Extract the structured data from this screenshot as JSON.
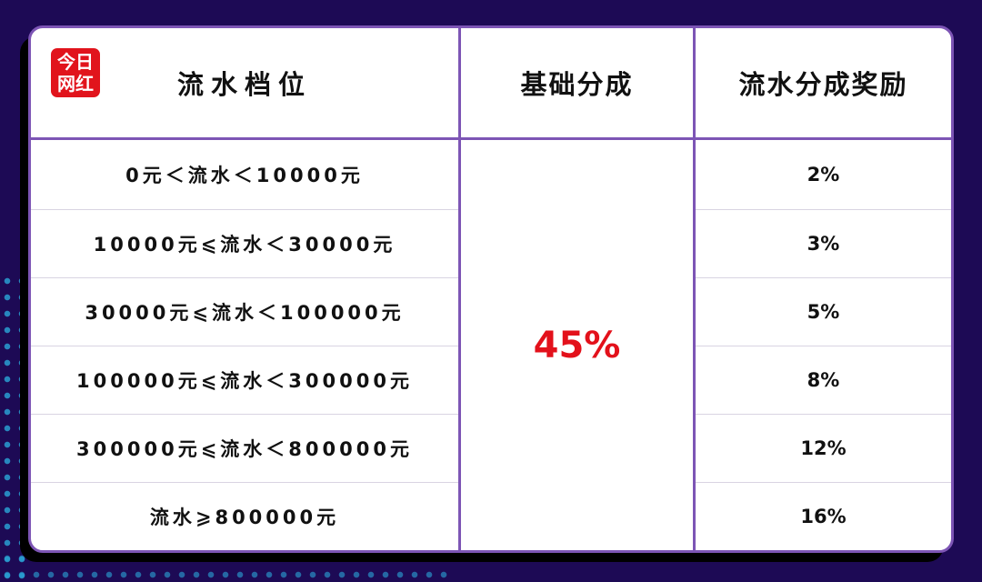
{
  "logo": {
    "line1": "今日",
    "line2": "网红"
  },
  "headers": [
    "流水档位",
    "基础分成",
    "流水分成奖励"
  ],
  "base_share": "45%",
  "rows": [
    {
      "tier": "0元＜流水＜10000元",
      "bonus": "2%"
    },
    {
      "tier": "10000元⩽流水＜30000元",
      "bonus": "3%"
    },
    {
      "tier": "30000元⩽流水＜100000元",
      "bonus": "5%"
    },
    {
      "tier": "100000元⩽流水＜300000元",
      "bonus": "8%"
    },
    {
      "tier": "300000元⩽流水＜800000元",
      "bonus": "12%"
    },
    {
      "tier": "流水⩾800000元",
      "bonus": "16%"
    }
  ],
  "colors": {
    "background": "#1d0a55",
    "border": "#7d55b5",
    "accent": "#e3111b"
  }
}
